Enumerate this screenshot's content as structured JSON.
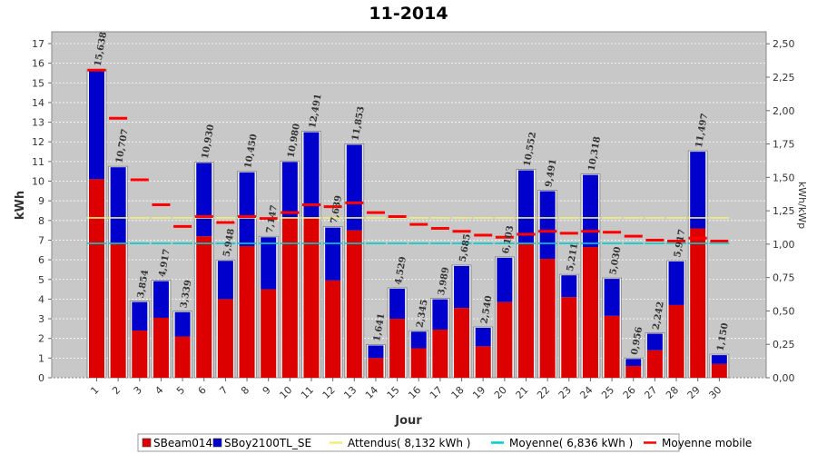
{
  "chart_data": {
    "type": "bar",
    "title": "11-2014",
    "xlabel": "Jour",
    "ylabel": "kWh",
    "ylabel_right": "kWh/kWp",
    "ylim": [
      0,
      17.6
    ],
    "yticks": [
      0,
      1,
      2,
      3,
      4,
      5,
      6,
      7,
      8,
      9,
      10,
      11,
      12,
      13,
      14,
      15,
      16,
      17
    ],
    "ylim_right": [
      0,
      2.59
    ],
    "yticks_right": [
      "0,00",
      "0,25",
      "0,50",
      "0,75",
      "1,00",
      "1,25",
      "1,50",
      "1,75",
      "2,00",
      "2,25",
      "2,50"
    ],
    "grid": true,
    "legend_position": "bottom",
    "categories": [
      "1",
      "2",
      "3",
      "4",
      "5",
      "6",
      "7",
      "8",
      "9",
      "10",
      "11",
      "12",
      "13",
      "14",
      "15",
      "16",
      "17",
      "18",
      "19",
      "20",
      "21",
      "22",
      "23",
      "24",
      "25",
      "26",
      "27",
      "28",
      "29",
      "30"
    ],
    "total_labels": [
      "15,638",
      "10,707",
      "3,854",
      "4,917",
      "3,339",
      "10,930",
      "5,948",
      "10,450",
      "7,147",
      "10,980",
      "12,491",
      "7,639",
      "11,853",
      "1,641",
      "4,529",
      "2,345",
      "3,989",
      "5,685",
      "2,540",
      "6,103",
      "10,552",
      "9,491",
      "5,211",
      "10,318",
      "5,030",
      "0,956",
      "2,242",
      "5,917",
      "11,497",
      "1,150"
    ],
    "series": [
      {
        "name": "SBeam014",
        "color": "#dd0000",
        "values": [
          10.1,
          6.85,
          2.4,
          3.05,
          2.1,
          7.2,
          4.0,
          6.7,
          4.5,
          8.1,
          8.1,
          4.95,
          7.5,
          1.0,
          3.0,
          1.5,
          2.45,
          3.55,
          1.6,
          3.85,
          6.8,
          6.05,
          4.1,
          6.65,
          3.15,
          0.6,
          1.4,
          3.7,
          7.6,
          0.7
        ]
      },
      {
        "name": "SBoy2100TL_SE",
        "color": "#0000cc",
        "values": [
          5.538,
          3.857,
          1.454,
          1.867,
          1.239,
          3.73,
          1.948,
          3.75,
          2.647,
          2.88,
          4.391,
          2.689,
          4.353,
          0.641,
          1.529,
          0.845,
          1.539,
          2.135,
          0.94,
          2.253,
          3.752,
          3.441,
          1.111,
          3.668,
          1.88,
          0.356,
          0.842,
          2.217,
          3.897,
          0.45
        ]
      }
    ],
    "attendus": {
      "name": "Attendus( 8,132 kWh )",
      "value": 8.132,
      "color": "#f0f07a"
    },
    "moyenne": {
      "name": "Moyenne( 6,836 kWh )",
      "value": 6.836,
      "color": "#00cccc"
    },
    "moyenne_mobile": {
      "name": "Moyenne mobile",
      "color": "#ff0000",
      "values": [
        15.65,
        13.2,
        10.07,
        8.8,
        7.7,
        8.2,
        7.9,
        8.2,
        8.1,
        8.4,
        8.8,
        8.7,
        8.9,
        8.4,
        8.2,
        7.8,
        7.6,
        7.45,
        7.25,
        7.15,
        7.3,
        7.45,
        7.35,
        7.45,
        7.4,
        7.2,
        7.0,
        6.95,
        7.1,
        6.95
      ]
    }
  },
  "legend": [
    {
      "label": "SBeam014",
      "kind": "box",
      "color": "#dd0000"
    },
    {
      "label": "SBoy2100TL_SE",
      "kind": "box",
      "color": "#0000cc"
    },
    {
      "label": "Attendus( 8,132 kWh )",
      "kind": "line",
      "color": "#f0f07a"
    },
    {
      "label": "Moyenne( 6,836 kWh )",
      "kind": "line",
      "color": "#00cccc"
    },
    {
      "label": "Moyenne mobile",
      "kind": "line",
      "color": "#ff0000"
    }
  ]
}
